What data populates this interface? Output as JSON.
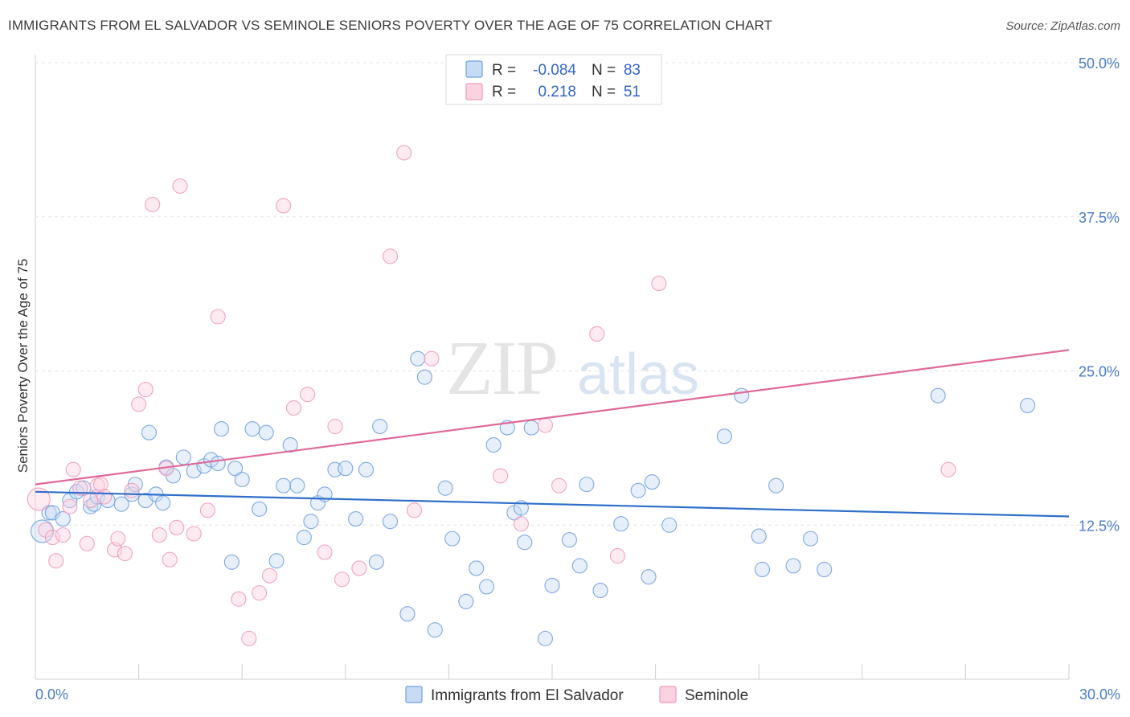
{
  "header": {
    "title": "IMMIGRANTS FROM EL SALVADOR VS SEMINOLE SENIORS POVERTY OVER THE AGE OF 75 CORRELATION CHART",
    "source": "Source: ZipAtlas.com"
  },
  "watermark": {
    "part1": "ZIP",
    "part2": "atlas"
  },
  "legend": {
    "rows": [
      {
        "r_label": "R =",
        "r_value": "-0.084",
        "n_label": "N =",
        "n_value": "83",
        "color": "#6fa0e0"
      },
      {
        "r_label": "R =",
        "r_value": " 0.218",
        "n_label": "N =",
        "n_value": "51",
        "color": "#f09ab8"
      }
    ]
  },
  "bottom_legend": [
    {
      "label": "Immigrants from El Salvador",
      "color": "#6fa0e0"
    },
    {
      "label": "Seminole",
      "color": "#f09ab8"
    }
  ],
  "chart_data": {
    "type": "scatter",
    "title": "IMMIGRANTS FROM EL SALVADOR VS SEMINOLE SENIORS POVERTY OVER THE AGE OF 75 CORRELATION CHART",
    "xlabel": "",
    "ylabel": "Seniors Poverty Over the Age of 75",
    "xlim": [
      0,
      30
    ],
    "ylim": [
      0,
      50
    ],
    "x_tick_labels": [
      "0.0%",
      "30.0%"
    ],
    "y_ticks": [
      12.5,
      25.0,
      37.5,
      50.0
    ],
    "y_tick_labels": [
      "12.5%",
      "25.0%",
      "37.5%",
      "50.0%"
    ],
    "grid": true,
    "series": [
      {
        "name": "Immigrants from El Salvador",
        "color": "#6fa0e0",
        "trend": {
          "x": [
            0,
            30
          ],
          "y": [
            15.2,
            13.2
          ]
        },
        "points": [
          [
            0.2,
            12.0
          ],
          [
            0.4,
            13.5
          ],
          [
            0.5,
            13.5
          ],
          [
            0.8,
            13.0
          ],
          [
            1.0,
            14.5
          ],
          [
            1.2,
            15.2
          ],
          [
            1.4,
            15.5
          ],
          [
            1.6,
            14.0
          ],
          [
            1.7,
            14.2
          ],
          [
            1.8,
            14.8
          ],
          [
            2.1,
            14.5
          ],
          [
            2.5,
            14.2
          ],
          [
            2.8,
            15.0
          ],
          [
            2.9,
            15.8
          ],
          [
            3.2,
            14.5
          ],
          [
            3.3,
            20.0
          ],
          [
            3.5,
            15.0
          ],
          [
            3.7,
            14.3
          ],
          [
            3.8,
            17.2
          ],
          [
            4.0,
            16.5
          ],
          [
            4.3,
            18.0
          ],
          [
            4.6,
            16.9
          ],
          [
            4.9,
            17.3
          ],
          [
            5.1,
            17.8
          ],
          [
            5.3,
            17.5
          ],
          [
            5.4,
            20.3
          ],
          [
            5.7,
            9.5
          ],
          [
            5.8,
            17.1
          ],
          [
            6.0,
            16.2
          ],
          [
            6.3,
            20.3
          ],
          [
            6.5,
            13.8
          ],
          [
            6.7,
            20.0
          ],
          [
            7.0,
            9.6
          ],
          [
            7.2,
            15.7
          ],
          [
            7.4,
            19.0
          ],
          [
            7.6,
            15.7
          ],
          [
            7.8,
            11.5
          ],
          [
            8.0,
            12.8
          ],
          [
            8.2,
            14.3
          ],
          [
            8.4,
            15.0
          ],
          [
            8.7,
            17.0
          ],
          [
            9.0,
            17.1
          ],
          [
            9.3,
            13.0
          ],
          [
            9.6,
            17.0
          ],
          [
            9.9,
            9.5
          ],
          [
            10.0,
            20.5
          ],
          [
            10.3,
            12.8
          ],
          [
            10.8,
            5.3
          ],
          [
            11.1,
            26.0
          ],
          [
            11.3,
            24.5
          ],
          [
            11.6,
            4.0
          ],
          [
            11.9,
            15.5
          ],
          [
            12.1,
            11.4
          ],
          [
            12.5,
            6.3
          ],
          [
            12.8,
            9.0
          ],
          [
            13.1,
            7.5
          ],
          [
            13.3,
            19.0
          ],
          [
            13.7,
            20.4
          ],
          [
            13.9,
            13.5
          ],
          [
            14.1,
            13.9
          ],
          [
            14.2,
            11.1
          ],
          [
            14.4,
            20.4
          ],
          [
            14.8,
            3.3
          ],
          [
            15.0,
            7.6
          ],
          [
            15.5,
            11.3
          ],
          [
            15.8,
            9.2
          ],
          [
            16.0,
            15.8
          ],
          [
            16.4,
            7.2
          ],
          [
            17.0,
            12.6
          ],
          [
            17.5,
            15.3
          ],
          [
            17.8,
            8.3
          ],
          [
            17.9,
            16.0
          ],
          [
            18.4,
            12.5
          ],
          [
            20.0,
            19.7
          ],
          [
            20.5,
            23.0
          ],
          [
            21.0,
            11.6
          ],
          [
            21.1,
            8.9
          ],
          [
            21.5,
            15.7
          ],
          [
            22.0,
            9.2
          ],
          [
            22.5,
            11.4
          ],
          [
            22.9,
            8.9
          ],
          [
            26.2,
            23.0
          ],
          [
            28.8,
            22.2
          ]
        ]
      },
      {
        "name": "Seminole",
        "color": "#f09ab8",
        "trend": {
          "x": [
            0,
            30
          ],
          "y": [
            15.8,
            26.7
          ]
        },
        "points": [
          [
            0.1,
            14.6
          ],
          [
            0.3,
            12.1
          ],
          [
            0.5,
            11.5
          ],
          [
            0.6,
            9.6
          ],
          [
            0.8,
            11.7
          ],
          [
            1.0,
            14.0
          ],
          [
            1.1,
            17.0
          ],
          [
            1.3,
            15.5
          ],
          [
            1.5,
            11.0
          ],
          [
            1.6,
            14.5
          ],
          [
            1.8,
            15.7
          ],
          [
            1.9,
            15.8
          ],
          [
            2.0,
            14.8
          ],
          [
            2.3,
            10.5
          ],
          [
            2.4,
            11.4
          ],
          [
            2.6,
            10.2
          ],
          [
            2.8,
            15.3
          ],
          [
            3.0,
            22.3
          ],
          [
            3.2,
            23.5
          ],
          [
            3.4,
            38.5
          ],
          [
            3.6,
            11.7
          ],
          [
            3.8,
            17.1
          ],
          [
            3.9,
            9.7
          ],
          [
            4.1,
            12.3
          ],
          [
            4.2,
            40.0
          ],
          [
            4.6,
            11.8
          ],
          [
            5.0,
            13.7
          ],
          [
            5.3,
            29.4
          ],
          [
            5.9,
            6.5
          ],
          [
            6.2,
            3.3
          ],
          [
            6.5,
            7.0
          ],
          [
            6.8,
            8.4
          ],
          [
            7.2,
            38.4
          ],
          [
            7.5,
            22.0
          ],
          [
            7.9,
            23.1
          ],
          [
            8.4,
            10.3
          ],
          [
            8.7,
            20.5
          ],
          [
            8.9,
            8.1
          ],
          [
            9.4,
            9.0
          ],
          [
            10.3,
            34.3
          ],
          [
            10.7,
            42.7
          ],
          [
            11.0,
            13.7
          ],
          [
            11.5,
            26.0
          ],
          [
            13.5,
            16.5
          ],
          [
            14.1,
            12.6
          ],
          [
            14.8,
            20.6
          ],
          [
            15.2,
            15.7
          ],
          [
            16.3,
            28.0
          ],
          [
            16.9,
            10.0
          ],
          [
            18.1,
            32.1
          ],
          [
            26.5,
            17.0
          ]
        ]
      }
    ]
  }
}
